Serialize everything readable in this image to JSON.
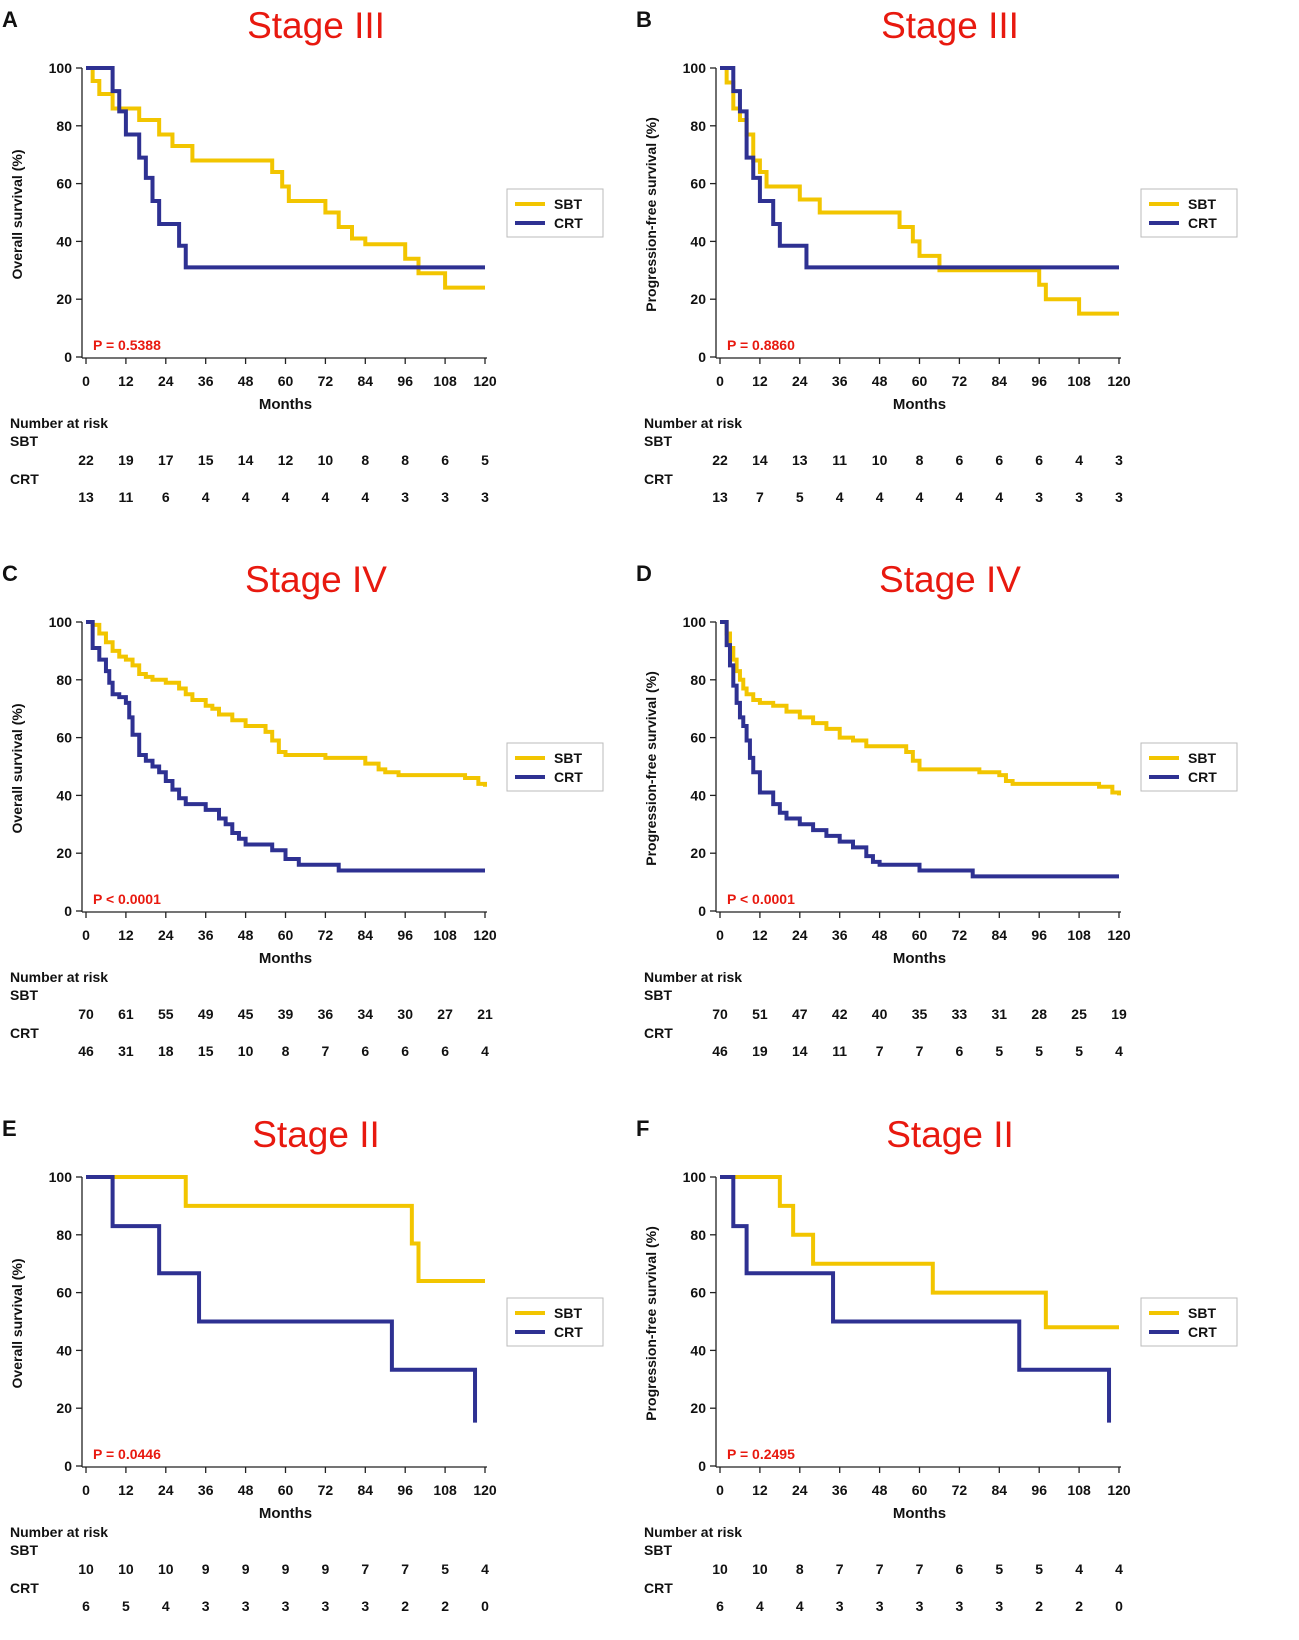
{
  "figure": {
    "months_label": "Months",
    "risk_title": "Number at risk",
    "legend": [
      "SBT",
      "CRT"
    ],
    "colors": {
      "sbt": "#F2C500",
      "crt": "#2E3192",
      "title": "#E8190F",
      "p_value": "#E8190F",
      "axis": "#222222"
    },
    "x_ticks": [
      0,
      12,
      24,
      36,
      48,
      60,
      72,
      84,
      96,
      108,
      120
    ],
    "y_ticks": [
      0,
      20,
      40,
      60,
      80,
      100
    ]
  },
  "chart_data": [
    {
      "panel": "A",
      "type": "line",
      "title": "Stage III",
      "ylabel": "Overall survival (%)",
      "xlabel": "Months",
      "xlim": [
        0,
        120
      ],
      "ylim": [
        0,
        100
      ],
      "p_value": "P = 0.5388",
      "series": [
        {
          "name": "SBT",
          "x": [
            0,
            2,
            4,
            8,
            12,
            16,
            22,
            26,
            32,
            36,
            40,
            44,
            48,
            52,
            56,
            59,
            61,
            64,
            68,
            72,
            76,
            80,
            84,
            88,
            92,
            96,
            100,
            104,
            108,
            112,
            116,
            120
          ],
          "y": [
            100,
            95.5,
            91,
            86,
            86,
            82,
            77,
            73,
            68,
            68,
            68,
            68,
            68,
            68,
            64,
            59,
            54,
            54,
            54,
            50,
            45,
            41,
            39,
            39,
            39,
            34,
            29,
            29,
            24,
            24,
            24,
            24
          ]
        },
        {
          "name": "CRT",
          "x": [
            0,
            8,
            10,
            12,
            14,
            16,
            18,
            20,
            22,
            24,
            26,
            28,
            30,
            36,
            60,
            120
          ],
          "y": [
            100,
            92,
            85,
            77,
            77,
            69,
            62,
            54,
            46,
            46,
            46,
            38.5,
            31,
            31,
            31,
            31
          ]
        }
      ],
      "risk": {
        "SBT": [
          "22",
          "19",
          "17",
          "15",
          "14",
          "12",
          "10",
          "8",
          "8",
          "6",
          "5"
        ],
        "CRT": [
          "13",
          "11",
          "6",
          "4",
          "4",
          "4",
          "4",
          "4",
          "3",
          "3",
          "3"
        ]
      }
    },
    {
      "panel": "B",
      "type": "line",
      "title": "Stage III",
      "ylabel": "Progression-free survival (%)",
      "xlabel": "Months",
      "xlim": [
        0,
        120
      ],
      "ylim": [
        0,
        100
      ],
      "p_value": "P = 0.8860",
      "series": [
        {
          "name": "SBT",
          "x": [
            0,
            2,
            4,
            6,
            8,
            10,
            12,
            14,
            24,
            26,
            30,
            36,
            54,
            58,
            60,
            62,
            66,
            72,
            84,
            96,
            98,
            100,
            108,
            112,
            120
          ],
          "y": [
            100,
            95,
            86,
            82,
            77,
            68,
            64,
            59,
            54.5,
            54.5,
            50,
            50,
            45,
            40,
            35,
            35,
            30,
            30,
            30,
            25,
            20,
            20,
            15,
            15,
            15
          ]
        },
        {
          "name": "CRT",
          "x": [
            0,
            4,
            6,
            8,
            10,
            12,
            16,
            18,
            26,
            28,
            60,
            120
          ],
          "y": [
            100,
            92,
            85,
            69,
            62,
            54,
            46,
            38.5,
            31,
            31,
            31,
            31
          ]
        }
      ],
      "risk": {
        "SBT": [
          "22",
          "14",
          "13",
          "11",
          "10",
          "8",
          "6",
          "6",
          "6",
          "4",
          "3"
        ],
        "CRT": [
          "13",
          "7",
          "5",
          "4",
          "4",
          "4",
          "4",
          "4",
          "3",
          "3",
          "3"
        ]
      }
    },
    {
      "panel": "C",
      "type": "line",
      "title": "Stage IV",
      "ylabel": "Overall survival (%)",
      "xlabel": "Months",
      "xlim": [
        0,
        120
      ],
      "ylim": [
        0,
        100
      ],
      "p_value": "P < 0.0001",
      "series": [
        {
          "name": "SBT",
          "x": [
            0,
            2,
            4,
            6,
            8,
            10,
            12,
            14,
            16,
            18,
            20,
            24,
            28,
            30,
            32,
            36,
            38,
            40,
            44,
            48,
            52,
            54,
            56,
            58,
            60,
            62,
            64,
            72,
            74,
            84,
            88,
            90,
            94,
            100,
            108,
            114,
            118,
            120
          ],
          "y": [
            100,
            99,
            96,
            93,
            90,
            88,
            87,
            85,
            82,
            81,
            80,
            79,
            77,
            75,
            73,
            71,
            70,
            68,
            66,
            64,
            64,
            62,
            59,
            55,
            54,
            54,
            54,
            53,
            53,
            51,
            49,
            48,
            47,
            47,
            47,
            46,
            44,
            43
          ]
        },
        {
          "name": "CRT",
          "x": [
            0,
            2,
            4,
            6,
            7,
            8,
            10,
            12,
            13,
            14,
            16,
            18,
            20,
            22,
            24,
            26,
            28,
            30,
            32,
            36,
            40,
            42,
            44,
            46,
            48,
            56,
            60,
            64,
            76,
            84,
            96,
            120
          ],
          "y": [
            100,
            91,
            87,
            83,
            79,
            75,
            74,
            72,
            67,
            61,
            54,
            52,
            50,
            48,
            45,
            42,
            39,
            37,
            37,
            35,
            32,
            30,
            27,
            25,
            23,
            21,
            18,
            16,
            14,
            14,
            14,
            14
          ]
        }
      ],
      "risk": {
        "SBT": [
          "70",
          "61",
          "55",
          "49",
          "45",
          "39",
          "36",
          "34",
          "30",
          "27",
          "21"
        ],
        "CRT": [
          "46",
          "31",
          "18",
          "15",
          "10",
          "8",
          "7",
          "6",
          "6",
          "6",
          "4"
        ]
      }
    },
    {
      "panel": "D",
      "type": "line",
      "title": "Stage IV",
      "ylabel": "Progression-free survival (%)",
      "xlabel": "Months",
      "xlim": [
        0,
        120
      ],
      "ylim": [
        0,
        100
      ],
      "p_value": "P < 0.0001",
      "series": [
        {
          "name": "SBT",
          "x": [
            0,
            2,
            3,
            4,
            5,
            6,
            7,
            8,
            10,
            12,
            16,
            20,
            24,
            28,
            32,
            36,
            40,
            44,
            48,
            54,
            56,
            58,
            60,
            64,
            72,
            78,
            84,
            86,
            88,
            94,
            100,
            108,
            114,
            118,
            120
          ],
          "y": [
            100,
            96,
            91,
            87,
            83,
            80,
            77,
            75,
            73,
            72,
            71,
            69,
            67,
            65,
            63,
            60,
            59,
            57,
            57,
            57,
            55,
            52,
            49,
            49,
            49,
            48,
            47,
            45,
            44,
            44,
            44,
            44,
            43,
            41,
            40
          ]
        },
        {
          "name": "CRT",
          "x": [
            0,
            2,
            3,
            4,
            5,
            6,
            7,
            8,
            9,
            10,
            12,
            16,
            18,
            20,
            24,
            28,
            32,
            36,
            40,
            44,
            46,
            48,
            54,
            60,
            66,
            72,
            76,
            84,
            96,
            120
          ],
          "y": [
            100,
            92,
            85,
            78,
            72,
            67,
            64,
            59,
            53,
            48,
            41,
            37,
            34,
            32,
            30,
            28,
            26,
            24,
            22,
            19,
            17,
            16,
            16,
            14,
            14,
            14,
            12,
            12,
            12,
            12
          ]
        }
      ],
      "risk": {
        "SBT": [
          "70",
          "51",
          "47",
          "42",
          "40",
          "35",
          "33",
          "31",
          "28",
          "25",
          "19"
        ],
        "CRT": [
          "46",
          "19",
          "14",
          "11",
          "7",
          "7",
          "6",
          "5",
          "5",
          "5",
          "4"
        ]
      }
    },
    {
      "panel": "E",
      "type": "line",
      "title": "Stage II",
      "ylabel": "Overall survival (%)",
      "xlabel": "Months",
      "xlim": [
        0,
        120
      ],
      "ylim": [
        0,
        100
      ],
      "p_value": "P = 0.0446",
      "series": [
        {
          "name": "SBT",
          "x": [
            0,
            20,
            30,
            97,
            98,
            99,
            100,
            120
          ],
          "y": [
            100,
            100,
            90,
            90,
            77,
            77,
            64,
            64
          ]
        },
        {
          "name": "CRT",
          "x": [
            0,
            8,
            22,
            34,
            92,
            116,
            117
          ],
          "y": [
            100,
            83,
            66.7,
            50,
            33.3,
            33.3,
            15
          ]
        }
      ],
      "risk": {
        "SBT": [
          "10",
          "10",
          "10",
          "9",
          "9",
          "9",
          "9",
          "7",
          "7",
          "5",
          "4"
        ],
        "CRT": [
          "6",
          "5",
          "4",
          "3",
          "3",
          "3",
          "3",
          "3",
          "2",
          "2",
          "0"
        ]
      }
    },
    {
      "panel": "F",
      "type": "line",
      "title": "Stage II",
      "ylabel": "Progression-free survival (%)",
      "xlabel": "Months",
      "xlim": [
        0,
        120
      ],
      "ylim": [
        0,
        100
      ],
      "p_value": "P = 0.2495",
      "series": [
        {
          "name": "SBT",
          "x": [
            0,
            18,
            22,
            28,
            64,
            98,
            120
          ],
          "y": [
            100,
            90,
            80,
            70,
            60,
            48,
            48
          ]
        },
        {
          "name": "CRT",
          "x": [
            0,
            4,
            8,
            34,
            90,
            116,
            117
          ],
          "y": [
            100,
            83,
            66.7,
            50,
            33.3,
            33.3,
            15
          ]
        }
      ],
      "risk": {
        "SBT": [
          "10",
          "10",
          "8",
          "7",
          "7",
          "7",
          "6",
          "5",
          "5",
          "4",
          "4"
        ],
        "CRT": [
          "6",
          "4",
          "4",
          "3",
          "3",
          "3",
          "3",
          "3",
          "2",
          "2",
          "0"
        ]
      }
    }
  ]
}
